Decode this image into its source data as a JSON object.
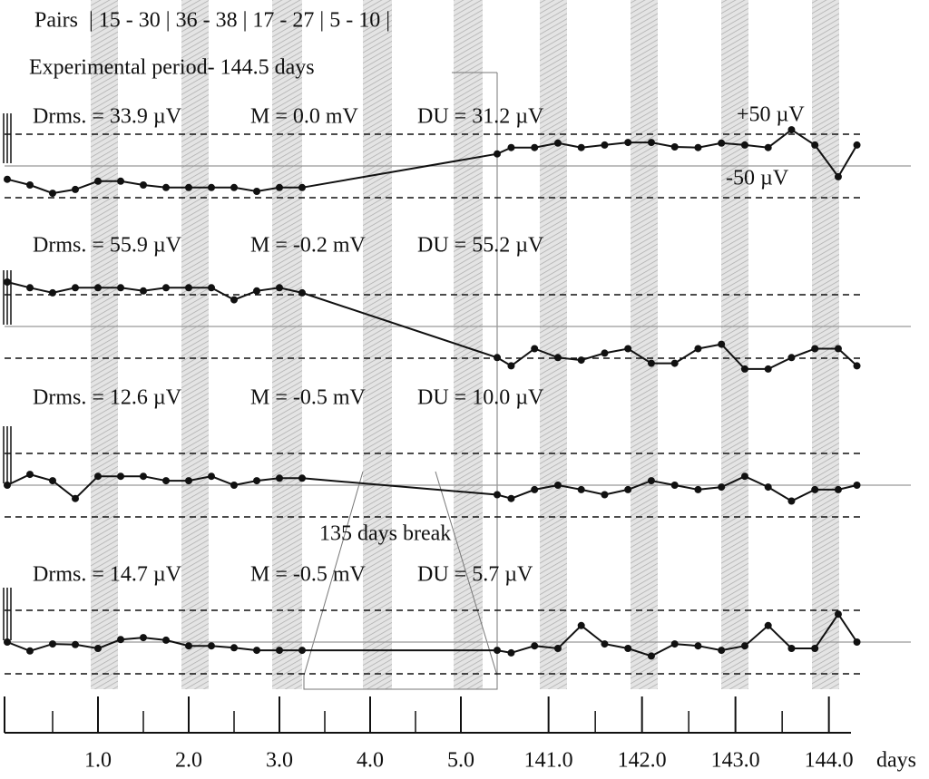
{
  "chart_data": {
    "type": "line",
    "header": "Pairs  | 15 - 30 | 36 - 38 | 17 - 27 | 5 - 10 |",
    "period": "Experimental period- 144.5 days",
    "break_label": "135 days break",
    "plus_label": "+50 µV",
    "minus_label": "-50 µV",
    "xlabel": "days",
    "xsegments": [
      [
        0,
        5.45
      ],
      [
        140.45,
        144.5
      ]
    ],
    "xticks": [
      {
        "value": 1,
        "label": "1.0"
      },
      {
        "value": 2,
        "label": "2.0"
      },
      {
        "value": 3,
        "label": "3.0"
      },
      {
        "value": 4,
        "label": "4.0"
      },
      {
        "value": 5,
        "label": "5.0"
      },
      {
        "value": 141,
        "label": "141.0"
      },
      {
        "value": 142,
        "label": "142.0"
      },
      {
        "value": 143,
        "label": "143.0"
      },
      {
        "value": 144,
        "label": "144.0"
      }
    ],
    "xminor": [
      0.5,
      1.5,
      2.5,
      3.5,
      4.5,
      141.5,
      142.5,
      143.5
    ],
    "x": [
      0,
      0.25,
      0.5,
      0.75,
      1.0,
      1.25,
      1.5,
      1.75,
      2.0,
      2.25,
      2.5,
      2.75,
      3.0,
      3.25,
      140.45,
      140.6,
      140.85,
      141.1,
      141.35,
      141.6,
      141.85,
      142.1,
      142.35,
      142.6,
      142.85,
      143.1,
      143.35,
      143.6,
      143.85,
      144.1,
      144.3
    ],
    "ylim": [
      -80,
      80
    ],
    "yticks": [
      -50,
      0,
      50
    ],
    "panels": [
      {
        "drms": "Drms. = 33.9 µV",
        "m": "M = 0.0 mV",
        "du": "DU = 31.2 µV",
        "color": "#111111",
        "values": [
          -21,
          -30,
          -43,
          -37,
          -24,
          -24,
          -30,
          -34,
          -34,
          -34,
          -34,
          -40,
          -34,
          -34,
          19,
          29,
          29,
          36,
          29,
          33,
          37,
          37,
          30,
          29,
          36,
          33,
          29,
          57,
          33,
          -17,
          33
        ]
      },
      {
        "drms": "Drms. = 55.9 µV",
        "m": "M = -0.2 mV",
        "du": "DU = 55.2 µV",
        "color": "#111111",
        "values": [
          70,
          61,
          53,
          61,
          61,
          61,
          56,
          61,
          61,
          61,
          42,
          56,
          61,
          53,
          -49,
          -62,
          -35,
          -49,
          -53,
          -42,
          -35,
          -58,
          -58,
          -35,
          -28,
          -67,
          -67,
          -49,
          -35,
          -35,
          -62
        ]
      },
      {
        "drms": "Drms. = 12.6 µV",
        "m": "M = -0.5 mV",
        "du": "DU = 10.0 µV",
        "color": "#111111",
        "values": [
          0,
          17,
          7,
          -21,
          14,
          14,
          14,
          7,
          7,
          14,
          0,
          7,
          11,
          11,
          -15,
          -21,
          -7,
          0,
          -7,
          -15,
          -7,
          7,
          0,
          -7,
          -3,
          14,
          -3,
          -25,
          -7,
          -7,
          0
        ]
      },
      {
        "drms": "Drms. = 14.7 µV",
        "m": "M = -0.5 mV",
        "du": "DU = 5.7 µV",
        "color": "#111111",
        "values": [
          0,
          -14,
          -3,
          -4,
          -10,
          4,
          7,
          3,
          -6,
          -6,
          -9,
          -13,
          -13,
          -13,
          -13,
          -17,
          -6,
          -10,
          26,
          -3,
          -10,
          -22,
          -3,
          -6,
          -13,
          -6,
          26,
          -10,
          -10,
          44,
          0
        ]
      }
    ]
  }
}
